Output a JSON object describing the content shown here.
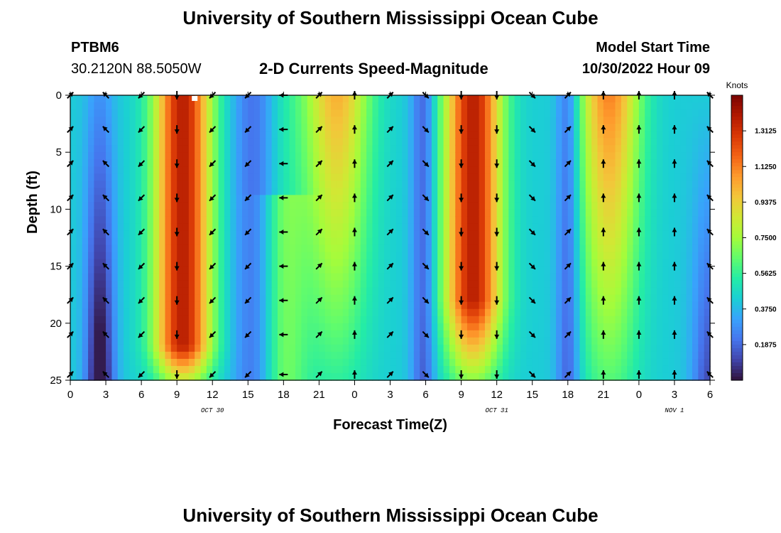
{
  "header": {
    "title": "University of Southern Mississippi Ocean Cube",
    "title_repeat": "University of Southern Mississippi Ocean Cube",
    "station_id": "PTBM6",
    "station_coords": "30.2120N  88.5050W",
    "subtitle": "2-D Currents Speed-Magnitude",
    "model_start_label": "Model Start Time",
    "model_start_value": "10/30/2022 Hour 09"
  },
  "chart_data": {
    "type": "heatmap",
    "title": "2-D Currents Speed-Magnitude",
    "xlabel": "Forecast Time(Z)",
    "ylabel": "Depth (ft)",
    "x_range_hours": [
      0,
      54
    ],
    "y_range_ft": [
      0,
      25
    ],
    "y_inverted": true,
    "x_ticks": [
      {
        "h": 0,
        "label": "0"
      },
      {
        "h": 3,
        "label": "3"
      },
      {
        "h": 6,
        "label": "6"
      },
      {
        "h": 9,
        "label": "9"
      },
      {
        "h": 12,
        "label": "12"
      },
      {
        "h": 15,
        "label": "15"
      },
      {
        "h": 18,
        "label": "18"
      },
      {
        "h": 21,
        "label": "21"
      },
      {
        "h": 24,
        "label": "0"
      },
      {
        "h": 27,
        "label": "3"
      },
      {
        "h": 30,
        "label": "6"
      },
      {
        "h": 33,
        "label": "9"
      },
      {
        "h": 36,
        "label": "12"
      },
      {
        "h": 39,
        "label": "15"
      },
      {
        "h": 42,
        "label": "18"
      },
      {
        "h": 45,
        "label": "21"
      },
      {
        "h": 48,
        "label": "0"
      },
      {
        "h": 51,
        "label": "3"
      },
      {
        "h": 54,
        "label": "6"
      }
    ],
    "date_labels": [
      {
        "h": 12,
        "label": "OCT 30"
      },
      {
        "h": 36,
        "label": "OCT 31"
      },
      {
        "h": 51,
        "label": "NOV 1"
      }
    ],
    "y_ticks": [
      0,
      5,
      10,
      15,
      20,
      25
    ],
    "colorbar": {
      "label": "Knots",
      "min": 0,
      "max": 1.5,
      "ticks": [
        "0.1875",
        "0.3750",
        "0.5625",
        "0.7500",
        "0.9375",
        "1.1250",
        "1.3125"
      ],
      "colormap": [
        "#30123b",
        "#4145ab",
        "#4675ed",
        "#39a2fc",
        "#1bcfd4",
        "#24eca6",
        "#61fc6c",
        "#a4fc3b",
        "#d1e834",
        "#f3c63a",
        "#fe9b2d",
        "#f36315",
        "#d93806",
        "#b11901",
        "#7a0402"
      ]
    },
    "speed_description": "Speed maxima near hours 9, 22, 33-36, 45; minima near hours 2-3, 15-18, 29-30, 42, 54",
    "vector_columns_hours": [
      0,
      3,
      6,
      9,
      12,
      15,
      18,
      21,
      24,
      27,
      30,
      33,
      36,
      39,
      42,
      45,
      48,
      51,
      54
    ],
    "vector_directions": [
      "ne",
      "nw",
      "sw",
      "s",
      "sw",
      "sw",
      "w",
      "ne",
      "n",
      "ne",
      "se",
      "s",
      "s",
      "se",
      "ne",
      "n",
      "n",
      "n",
      "nw"
    ],
    "marker": {
      "h": 10.5,
      "depth": 0
    }
  }
}
